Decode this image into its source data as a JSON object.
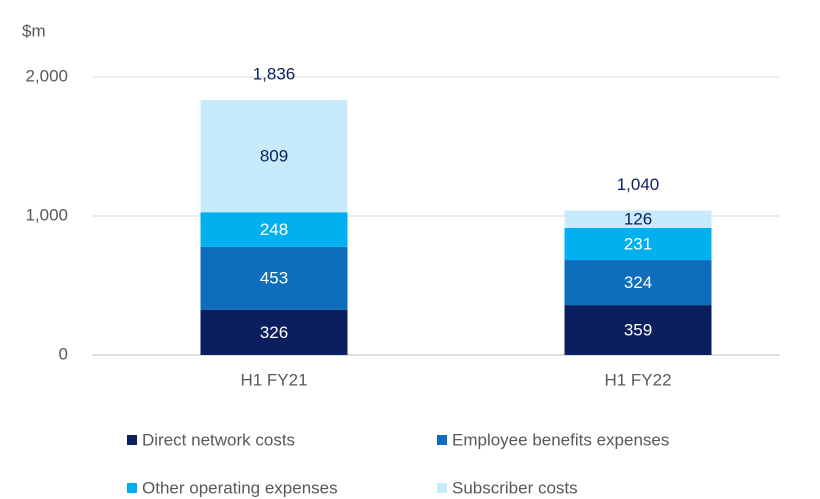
{
  "chart_data": {
    "type": "stacked-bar",
    "y_label": "$m",
    "categories": [
      "H1 FY21",
      "H1 FY22"
    ],
    "series": [
      {
        "name": "Direct network costs",
        "color": "#0b1f5e",
        "values": [
          326,
          359
        ]
      },
      {
        "name": "Employee benefits expenses",
        "color": "#0e6ebd",
        "values": [
          453,
          324
        ]
      },
      {
        "name": "Other operating expenses",
        "color": "#00b0ef",
        "values": [
          248,
          231
        ]
      },
      {
        "name": "Subscriber costs",
        "color": "#c8ebfb",
        "values": [
          809,
          126
        ]
      }
    ],
    "totals": [
      1836,
      1040
    ],
    "total_labels": [
      "1,836",
      "1,040"
    ],
    "ylim": [
      0,
      2000
    ],
    "yticks": [
      0,
      {
        "value": 1000,
        "label": "1,000"
      },
      {
        "value": 2000,
        "label": "2,000"
      }
    ],
    "grid": true
  }
}
